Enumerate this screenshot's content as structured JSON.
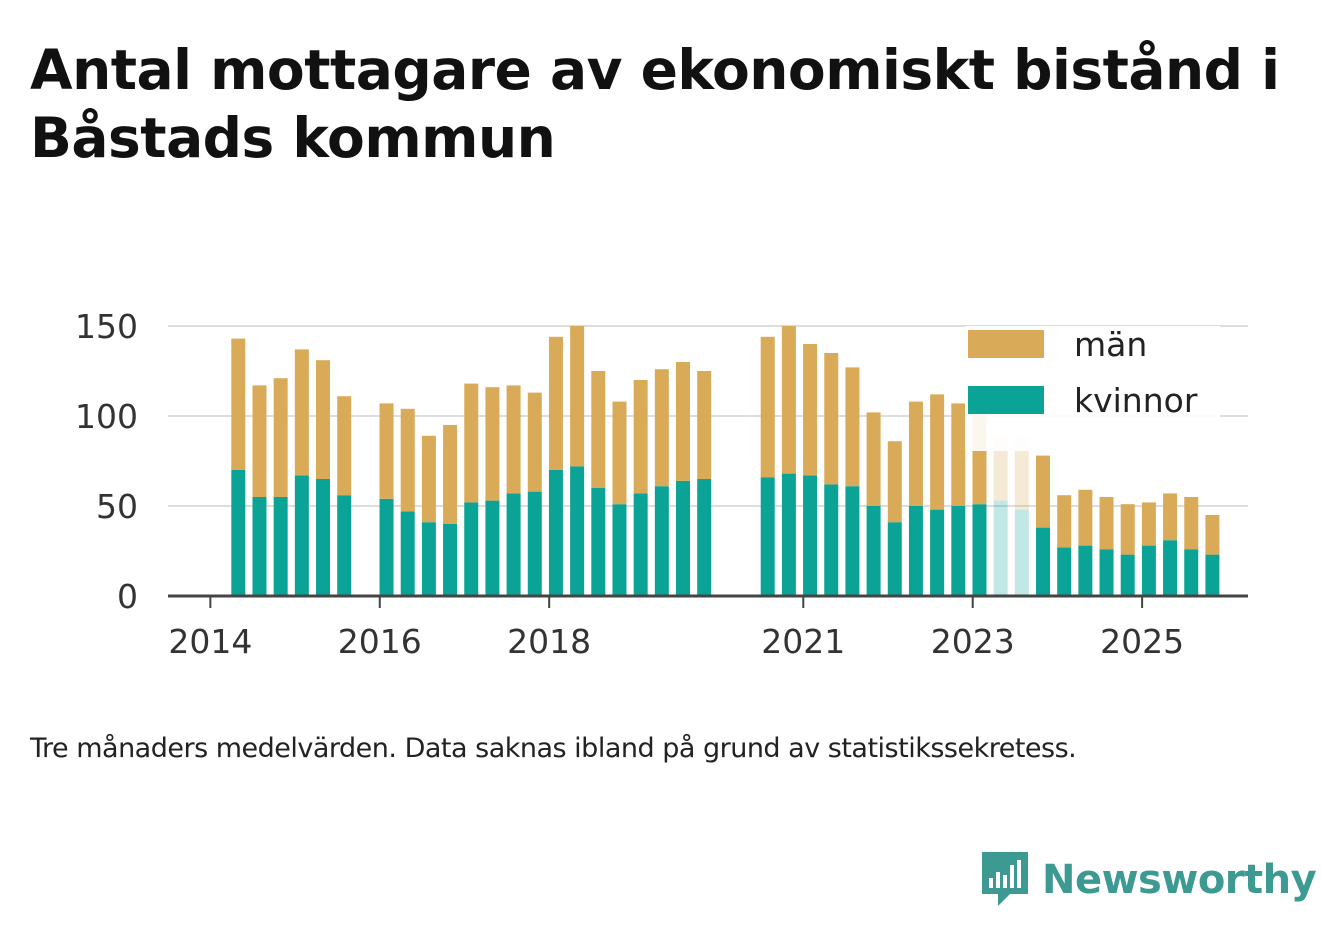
{
  "title": "Antal mottagare av ekonomiskt bistånd i Båstads kommun",
  "caption": "Tre månaders medelvärden. Data saknas ibland på grund av statistikssekretess.",
  "brand": {
    "name": "Newsworthy",
    "color": "#3d9a92"
  },
  "colors": {
    "man": "#d9ab58",
    "kvinnor": "#0ba396",
    "grid": "#dddddd",
    "axis": "#444444"
  },
  "chart_data": {
    "type": "bar",
    "stacked": true,
    "title": "Antal mottagare av ekonomiskt bistånd i Båstads kommun",
    "xlabel": "",
    "ylabel": "",
    "ylim": [
      0,
      150
    ],
    "yticks": [
      0,
      50,
      100,
      150
    ],
    "xticks": [
      {
        "label": "2014",
        "x": 2014.0
      },
      {
        "label": "2016",
        "x": 2016.0
      },
      {
        "label": "2018",
        "x": 2018.0
      },
      {
        "label": "2021",
        "x": 2021.0
      },
      {
        "label": "2023",
        "x": 2023.0
      },
      {
        "label": "2025",
        "x": 2025.0
      }
    ],
    "grid": true,
    "legend": {
      "position": "top-right",
      "entries": [
        "män",
        "kvinnor"
      ]
    },
    "x": [
      2014.33,
      2014.58,
      2014.83,
      2015.08,
      2015.33,
      2015.58,
      2016.08,
      2016.33,
      2016.58,
      2016.83,
      2017.08,
      2017.33,
      2017.58,
      2017.83,
      2018.08,
      2018.33,
      2018.58,
      2018.83,
      2019.08,
      2019.33,
      2019.58,
      2019.83,
      2020.58,
      2020.83,
      2021.08,
      2021.33,
      2021.58,
      2021.83,
      2022.08,
      2022.33,
      2022.58,
      2022.83,
      2023.08,
      2023.33,
      2023.58,
      2023.83,
      2024.08,
      2024.33,
      2024.58,
      2024.83,
      2025.08,
      2025.33,
      2025.58,
      2025.83
    ],
    "series": [
      {
        "name": "kvinnor",
        "values": [
          70,
          55,
          55,
          67,
          65,
          56,
          54,
          47,
          41,
          40,
          52,
          53,
          57,
          58,
          70,
          72,
          60,
          51,
          57,
          61,
          64,
          65,
          66,
          68,
          67,
          62,
          61,
          50,
          41,
          50,
          48,
          50,
          51,
          53,
          48,
          38,
          27,
          28,
          26,
          23,
          28,
          31,
          26,
          23
        ]
      },
      {
        "name": "män",
        "values": [
          73,
          62,
          66,
          70,
          66,
          55,
          53,
          57,
          48,
          55,
          66,
          63,
          60,
          55,
          74,
          78,
          65,
          57,
          63,
          65,
          66,
          60,
          78,
          82,
          73,
          73,
          66,
          52,
          45,
          58,
          64,
          57,
          52,
          35,
          40,
          40,
          29,
          31,
          29,
          28,
          24,
          26,
          29,
          22
        ]
      }
    ],
    "faded": [
      false,
      false,
      false,
      false,
      false,
      false,
      false,
      false,
      false,
      false,
      false,
      false,
      false,
      false,
      false,
      false,
      false,
      false,
      false,
      false,
      false,
      false,
      false,
      false,
      false,
      false,
      false,
      false,
      false,
      false,
      false,
      false,
      false,
      true,
      true,
      false,
      false,
      false,
      false,
      false,
      false,
      false,
      false,
      false
    ]
  }
}
